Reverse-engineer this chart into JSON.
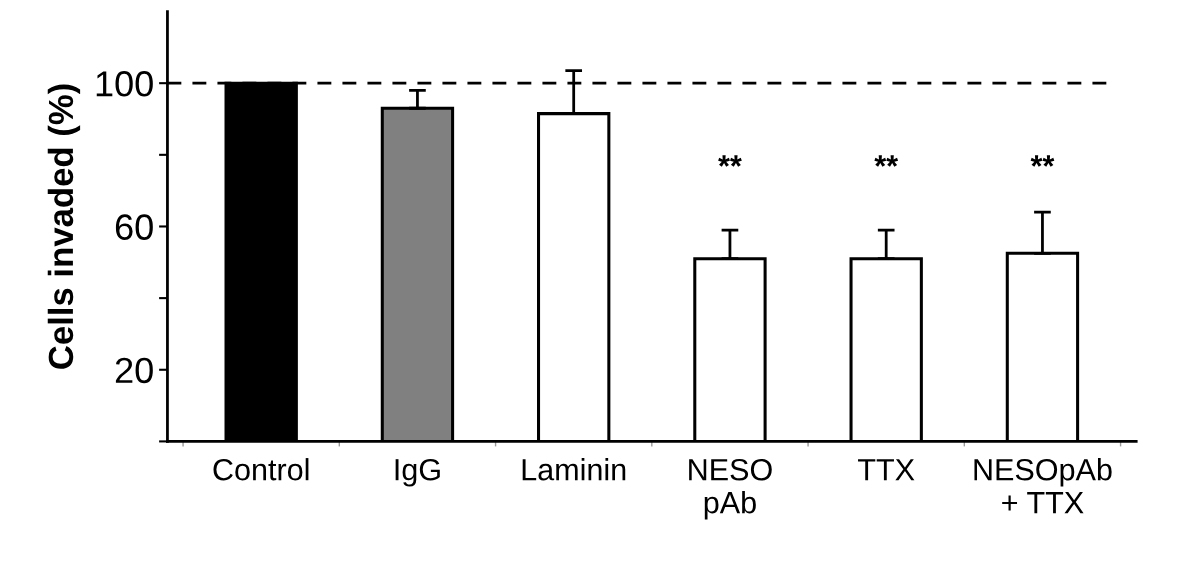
{
  "chart_data": {
    "type": "bar",
    "ylabel": "Cells invaded (%)",
    "categories": [
      "Control",
      "IgG",
      "Laminin",
      "NESO\npAb",
      "TTX",
      "NESOpAb\n+ TTX"
    ],
    "values": [
      100,
      93,
      91.5,
      51,
      51,
      52.5
    ],
    "errors": [
      null,
      5,
      12,
      8,
      8,
      11.5
    ],
    "colors": [
      "#000000",
      "#808080",
      "#ffffff",
      "#ffffff",
      "#ffffff",
      "#ffffff"
    ],
    "ylim": [
      0,
      120
    ],
    "yticks": [
      {
        "value": 0,
        "label": null
      },
      20,
      {
        "value": 40,
        "label": null
      },
      60,
      {
        "value": 80,
        "label": null
      },
      100
    ],
    "ref_lines": [
      {
        "axis": "y",
        "value": 100,
        "color": "#000000",
        "line_style": "dashed"
      }
    ],
    "annotations": [
      "**",
      "**",
      "**"
    ],
    "grid": false,
    "legend": false
  }
}
